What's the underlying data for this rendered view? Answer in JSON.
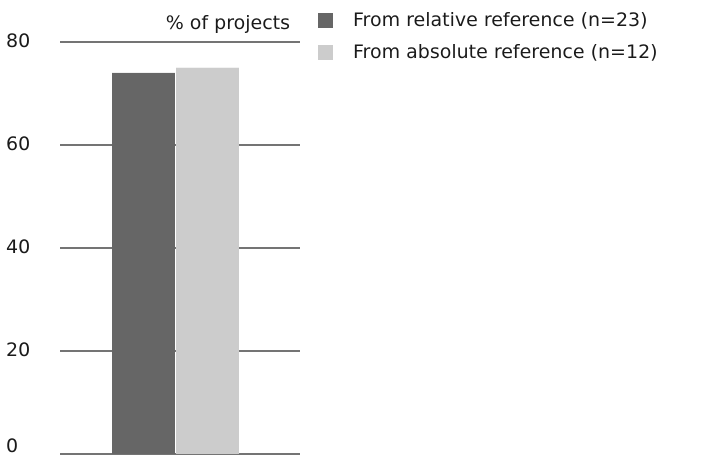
{
  "chart_data": {
    "type": "bar",
    "ylabel": "% of projects",
    "ylim": [
      0,
      80
    ],
    "yticks": [
      "80",
      "60",
      "40",
      "20",
      "0"
    ],
    "grid": true,
    "legend_position": "top-right",
    "series": [
      {
        "name": "From relative reference (n=23)",
        "value": 74,
        "color": "#666666"
      },
      {
        "name": "From absolute reference (n=12)",
        "value": 75,
        "color": "#cccccc"
      }
    ]
  },
  "legend": {
    "items": [
      {
        "label": "From relative reference (n=23)",
        "color": "#666666"
      },
      {
        "label": "From absolute reference (n=12)",
        "color": "#cccccc"
      }
    ]
  }
}
